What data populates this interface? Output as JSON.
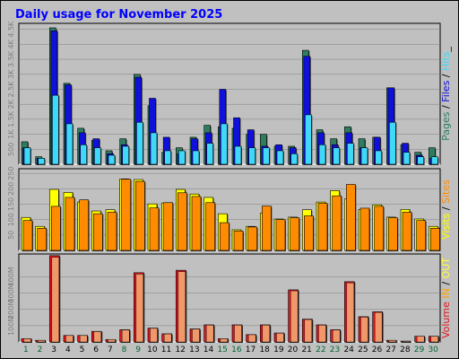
{
  "title": "Daily usage for November 2025",
  "colors": {
    "background": "#c0c0c0",
    "plot_background": "#c0c0c0",
    "grid": "#808080",
    "pages": "#2e7d5e",
    "files": "#1010dd",
    "hits": "#40d8f8",
    "visits": "#ffff00",
    "sites": "#ff8c00",
    "kbin": "#ffa000",
    "kbout": "#ffff40",
    "volume": "#e0141e",
    "volume_light": "#f0986a",
    "weekend_day": "#006633",
    "weekday_day": "#000000"
  },
  "days": [
    "1",
    "2",
    "3",
    "4",
    "5",
    "6",
    "7",
    "8",
    "9",
    "10",
    "11",
    "12",
    "13",
    "14",
    "15",
    "16",
    "17",
    "18",
    "19",
    "20",
    "21",
    "22",
    "23",
    "24",
    "25",
    "26",
    "27",
    "28",
    "29",
    "30"
  ],
  "weekend_days": [
    "1",
    "2",
    "8",
    "9",
    "15",
    "16",
    "22",
    "23",
    "29",
    "30"
  ],
  "panel_top": {
    "right_label": [
      {
        "text": "Pages",
        "color": "#2e7d5e"
      },
      {
        "text": " / ",
        "color": "#000000"
      },
      {
        "text": "Files",
        "color": "#1010dd"
      },
      {
        "text": " / ",
        "color": "#000000"
      },
      {
        "text": "Hits",
        "color": "#40d8f8"
      },
      {
        "text": "_",
        "color": "#000000"
      }
    ],
    "y_ticks": [
      "4.5K",
      "4K",
      "3.5K",
      "3K",
      "2.5K",
      "2K",
      "1.5K",
      "1K",
      "500"
    ]
  },
  "panel_mid": {
    "right_label": [
      {
        "text": "Visits",
        "color": "#ffff00"
      },
      {
        "text": " / ",
        "color": "#000000"
      },
      {
        "text": "Sites",
        "color": "#ff8c00"
      }
    ],
    "y_ticks": [
      "250",
      "200",
      "150",
      "100",
      "50"
    ]
  },
  "panel_bottom": {
    "right_label": [
      {
        "text": "Volume",
        "color": "#e0141e"
      },
      {
        "text": " ",
        "color": "#000000"
      },
      {
        "text": "IN",
        "color": "#ffa000"
      },
      {
        "text": " / ",
        "color": "#000000"
      },
      {
        "text": "OUT",
        "color": "#ffff40"
      }
    ],
    "y_ticks": [
      "400M",
      "300M",
      "200M",
      "100M"
    ]
  },
  "chart_data": [
    {
      "type": "bar",
      "title": "Daily usage for November 2025",
      "categories": [
        "1",
        "2",
        "3",
        "4",
        "5",
        "6",
        "7",
        "8",
        "9",
        "10",
        "11",
        "12",
        "13",
        "14",
        "15",
        "16",
        "17",
        "18",
        "19",
        "20",
        "21",
        "22",
        "23",
        "24",
        "25",
        "26",
        "27",
        "28",
        "29",
        "30"
      ],
      "ylim": [
        0,
        4700
      ],
      "series": [
        {
          "name": "Pages",
          "values": [
            750,
            250,
            4550,
            2700,
            1200,
            800,
            450,
            850,
            3000,
            1950,
            400,
            550,
            900,
            1300,
            1250,
            1200,
            1000,
            1000,
            600,
            600,
            3800,
            1150,
            850,
            1250,
            850,
            900,
            2550,
            650,
            400,
            550
          ]
        },
        {
          "name": "Files",
          "values": [
            550,
            200,
            4450,
            2650,
            1050,
            850,
            350,
            650,
            2900,
            2200,
            900,
            350,
            850,
            1050,
            2500,
            1550,
            1150,
            600,
            650,
            550,
            3600,
            1050,
            650,
            1050,
            550,
            900,
            2550,
            700,
            300,
            200
          ]
        },
        {
          "name": "Hits",
          "values": [
            550,
            200,
            2300,
            1350,
            650,
            550,
            300,
            600,
            1400,
            1050,
            450,
            450,
            450,
            700,
            1350,
            600,
            550,
            550,
            450,
            350,
            1650,
            650,
            550,
            700,
            550,
            450,
            1400,
            400,
            250,
            250
          ]
        }
      ]
    },
    {
      "type": "bar",
      "categories": [
        "1",
        "2",
        "3",
        "4",
        "5",
        "6",
        "7",
        "8",
        "9",
        "10",
        "11",
        "12",
        "13",
        "14",
        "15",
        "16",
        "17",
        "18",
        "19",
        "20",
        "21",
        "22",
        "23",
        "24",
        "25",
        "26",
        "27",
        "28",
        "29",
        "30"
      ],
      "ylim": [
        0,
        265
      ],
      "series": [
        {
          "name": "Visits",
          "values": [
            107,
            78,
            198,
            188,
            157,
            128,
            132,
            232,
            230,
            151,
            154,
            198,
            183,
            172,
            119,
            67,
            78,
            121,
            102,
            108,
            132,
            157,
            194,
            167,
            132,
            148,
            108,
            133,
            102,
            78
          ]
        },
        {
          "name": "Sites",
          "values": [
            97,
            72,
            143,
            172,
            164,
            119,
            124,
            231,
            224,
            138,
            155,
            187,
            175,
            155,
            90,
            63,
            76,
            144,
            100,
            106,
            112,
            153,
            177,
            214,
            137,
            143,
            106,
            124,
            97,
            72
          ]
        }
      ]
    },
    {
      "type": "bar",
      "categories": [
        "1",
        "2",
        "3",
        "4",
        "5",
        "6",
        "7",
        "8",
        "9",
        "10",
        "11",
        "12",
        "13",
        "14",
        "15",
        "16",
        "17",
        "18",
        "19",
        "20",
        "21",
        "22",
        "23",
        "24",
        "25",
        "26",
        "27",
        "28",
        "29",
        "30"
      ],
      "ylim": [
        0,
        540
      ],
      "series": [
        {
          "name": "Volume",
          "values": [
            20,
            10,
            530,
            40,
            40,
            65,
            15,
            75,
            425,
            85,
            50,
            440,
            80,
            105,
            20,
            105,
            45,
            105,
            55,
            320,
            140,
            105,
            75,
            370,
            155,
            185,
            10,
            5,
            35,
            35
          ]
        }
      ]
    }
  ]
}
